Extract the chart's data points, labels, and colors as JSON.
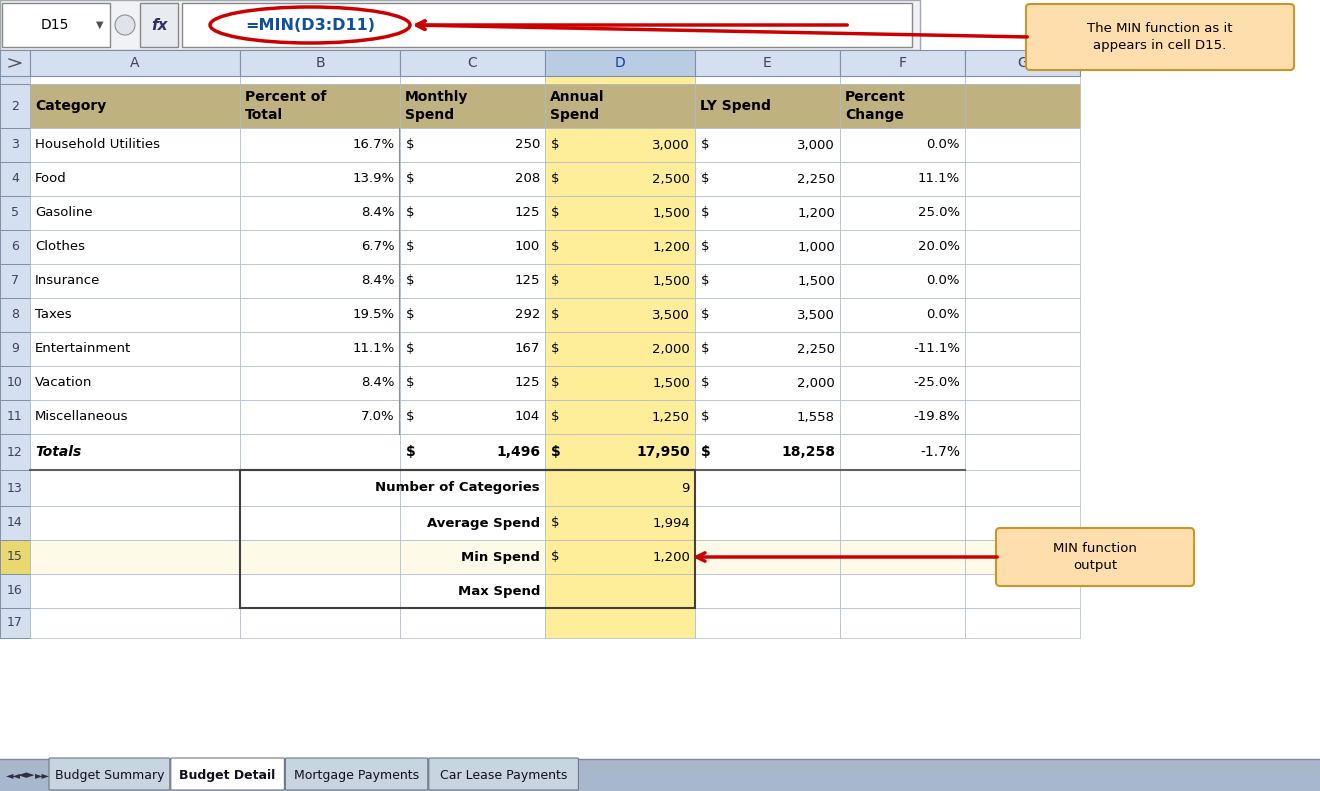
{
  "cell_name_box": "D15",
  "formula_bar_text": "=MIN(D3:D11)",
  "col_letters": [
    "A",
    "B",
    "C",
    "D",
    "E",
    "F",
    "G"
  ],
  "header_row": [
    "Category",
    "Percent of\nTotal",
    "Monthly\nSpend",
    "Annual\nSpend",
    "LY Spend",
    "Percent\nChange"
  ],
  "data_rows": [
    [
      "Household Utilities",
      "16.7%",
      "250",
      "3,000",
      "3,000",
      "0.0%"
    ],
    [
      "Food",
      "13.9%",
      "208",
      "2,500",
      "2,250",
      "11.1%"
    ],
    [
      "Gasoline",
      "8.4%",
      "125",
      "1,500",
      "1,200",
      "25.0%"
    ],
    [
      "Clothes",
      "6.7%",
      "100",
      "1,200",
      "1,000",
      "20.0%"
    ],
    [
      "Insurance",
      "8.4%",
      "125",
      "1,500",
      "1,500",
      "0.0%"
    ],
    [
      "Taxes",
      "19.5%",
      "292",
      "3,500",
      "3,500",
      "0.0%"
    ],
    [
      "Entertainment",
      "11.1%",
      "167",
      "2,000",
      "2,250",
      "-11.1%"
    ],
    [
      "Vacation",
      "8.4%",
      "125",
      "1,500",
      "2,000",
      "-25.0%"
    ],
    [
      "Miscellaneous",
      "7.0%",
      "104",
      "1,250",
      "1,558",
      "-19.8%"
    ]
  ],
  "totals_row": [
    "Totals",
    "",
    "1,496",
    "17,950",
    "18,258",
    "-1.7%"
  ],
  "summary_labels": [
    "Number of Categories",
    "Average Spend",
    "Min Spend",
    "Max Spend"
  ],
  "summary_dollar": [
    false,
    true,
    true,
    false
  ],
  "summary_values": [
    "9",
    "1,994",
    "1,200",
    ""
  ],
  "sheet_tabs": [
    "Budget Summary",
    "Budget Detail",
    "Mortgage Payments",
    "Car Lease Payments"
  ],
  "active_tab": "Budget Detail",
  "annotation_top": "The MIN function as it\nappears in cell D15.",
  "annotation_bottom": "MIN function\noutput",
  "header_fill": "#BFB180",
  "col_d_fill": "#FFEE99",
  "row15_fill": "#FFEE99",
  "grid_color": "#AABBCC",
  "col_hdr_fill": "#D4DFF0",
  "row_num_fill": "#D4DFF0",
  "row_num_fill_15": "#E8D870",
  "white": "#FFFFFF",
  "annotation_bg": "#FFDEAD",
  "annotation_border": "#C8962A",
  "arrow_color": "#CC0000",
  "tab_bar_bg": "#A8B8CC",
  "active_tab_bg": "#FFFFFF",
  "inactive_tab_bg": "#C8D4E0",
  "formula_bar_bg": "#FFFFFF",
  "cell_ref_bg": "#FFFFFF"
}
